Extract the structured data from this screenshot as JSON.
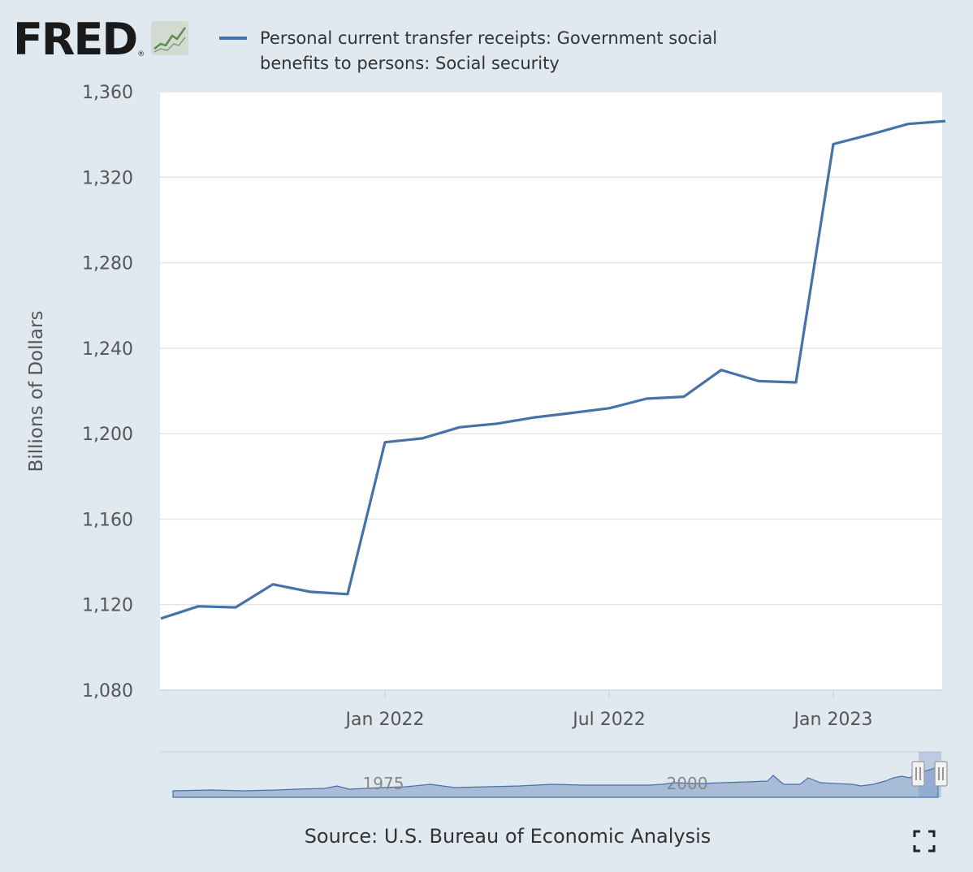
{
  "legend": {
    "series_label": "Personal current transfer receipts: Government social benefits to persons: Social security",
    "series_color": "#4572a7"
  },
  "logo": {
    "text": "FRED",
    "reg": "®",
    "icon": "line-chart-icon"
  },
  "source": "Source: U.S. Bureau of Economic Analysis",
  "navigator": {
    "labels": [
      "1975",
      "2000"
    ],
    "handle_icon": "drag-handle-icon"
  },
  "fullscreen": {
    "icon": "fullscreen-icon"
  },
  "colors": {
    "background": "#e1e9f0",
    "plot": "#ffffff",
    "line": "#4572a7",
    "grid": "#e6e6e6"
  },
  "chart_data": {
    "type": "line",
    "title": "",
    "xlabel": "",
    "ylabel": "Billions of Dollars",
    "ylim": [
      1080,
      1360
    ],
    "yticks": [
      "1,080",
      "1,120",
      "1,160",
      "1,200",
      "1,240",
      "1,280",
      "1,320",
      "1,360"
    ],
    "xticks": [
      "Jan 2022",
      "Jul 2022",
      "Jan 2023"
    ],
    "grid": true,
    "legend_position": "top",
    "series": [
      {
        "name": "Personal current transfer receipts: Government social benefits to persons: Social security",
        "x": [
          "2021-07",
          "2021-08",
          "2021-09",
          "2021-10",
          "2021-11",
          "2021-12",
          "2022-01",
          "2022-02",
          "2022-03",
          "2022-04",
          "2022-05",
          "2022-06",
          "2022-07",
          "2022-08",
          "2022-09",
          "2022-10",
          "2022-11",
          "2022-12",
          "2023-01",
          "2023-02",
          "2023-03",
          "2023-04"
        ],
        "values": [
          1113.5,
          1119.2,
          1118.7,
          1129.5,
          1126.0,
          1124.9,
          1196.0,
          1197.8,
          1203.0,
          1204.7,
          1207.6,
          1209.7,
          1211.9,
          1216.4,
          1217.3,
          1229.8,
          1224.6,
          1224.0,
          1335.5,
          1340.0,
          1344.9,
          1346.3
        ]
      }
    ]
  }
}
